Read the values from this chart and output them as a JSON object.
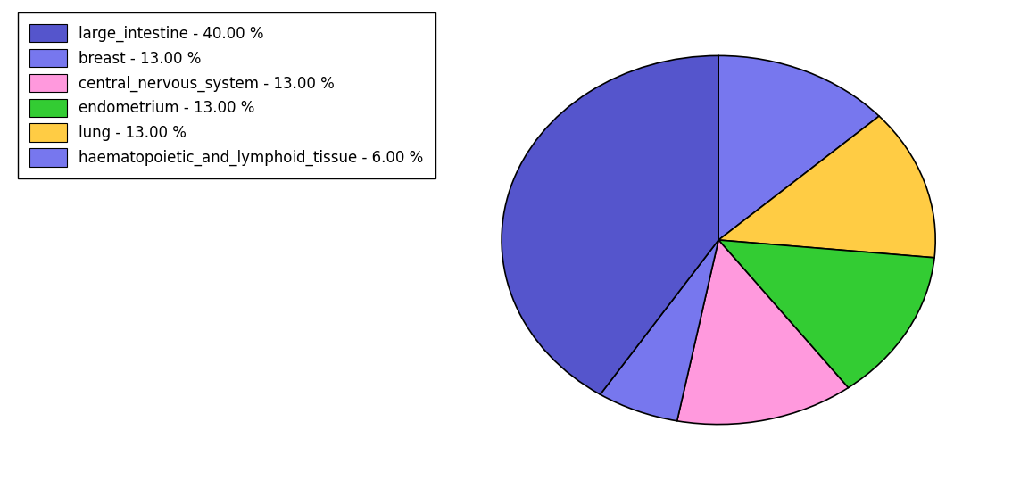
{
  "labels": [
    "large_intestine",
    "breast",
    "central_nervous_system",
    "endometrium",
    "lung",
    "haematopoietic_and_lymphoid_tissue"
  ],
  "values": [
    40,
    13,
    13,
    13,
    13,
    6
  ],
  "colors": {
    "large_intestine": "#5555cc",
    "breast": "#7777ee",
    "central_nervous_system": "#ff99dd",
    "endometrium": "#33cc33",
    "lung": "#ffcc44",
    "haematopoietic_and_lymphoid_tissue": "#7777ee"
  },
  "legend_labels": [
    "large_intestine - 40.00 %",
    "breast - 13.00 %",
    "central_nervous_system - 13.00 %",
    "endometrium - 13.00 %",
    "lung - 13.00 %",
    "haematopoietic_and_lymphoid_tissue - 6.00 %"
  ],
  "legend_colors": [
    "#5555cc",
    "#7777ee",
    "#ff99dd",
    "#33cc33",
    "#ffcc44",
    "#7777ee"
  ],
  "figsize": [
    11.34,
    5.38
  ],
  "dpi": 100
}
